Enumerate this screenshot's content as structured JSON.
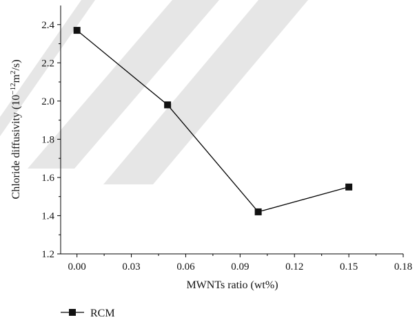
{
  "chart_data": {
    "type": "line",
    "xlabel": "MWNTs ratio (wt%)",
    "ylabel": {
      "prefix": "Chloride diffusivity (10",
      "exp1": "−12",
      "mid": "m",
      "exp2": "2",
      "suffix": "/s)"
    },
    "xlim": [
      -0.009,
      0.18
    ],
    "ylim": [
      1.2,
      2.5
    ],
    "x_ticks": [
      0.0,
      0.03,
      0.06,
      0.09,
      0.12,
      0.15,
      0.18
    ],
    "x_tick_labels": [
      "0.00",
      "0.03",
      "0.06",
      "0.09",
      "0.12",
      "0.15",
      "0.18"
    ],
    "y_ticks": [
      1.2,
      1.4,
      1.6,
      1.8,
      2.0,
      2.2,
      2.4
    ],
    "y_tick_labels": [
      "1.2",
      "1.4",
      "1.6",
      "1.8",
      "2.0",
      "2.2",
      "2.4"
    ],
    "grid": false,
    "legend_position": "bottom-left",
    "series": [
      {
        "name": "RCM",
        "marker": "square",
        "x": [
          0.0,
          0.05,
          0.1,
          0.15
        ],
        "y": [
          2.37,
          1.98,
          1.42,
          1.55
        ]
      }
    ]
  }
}
